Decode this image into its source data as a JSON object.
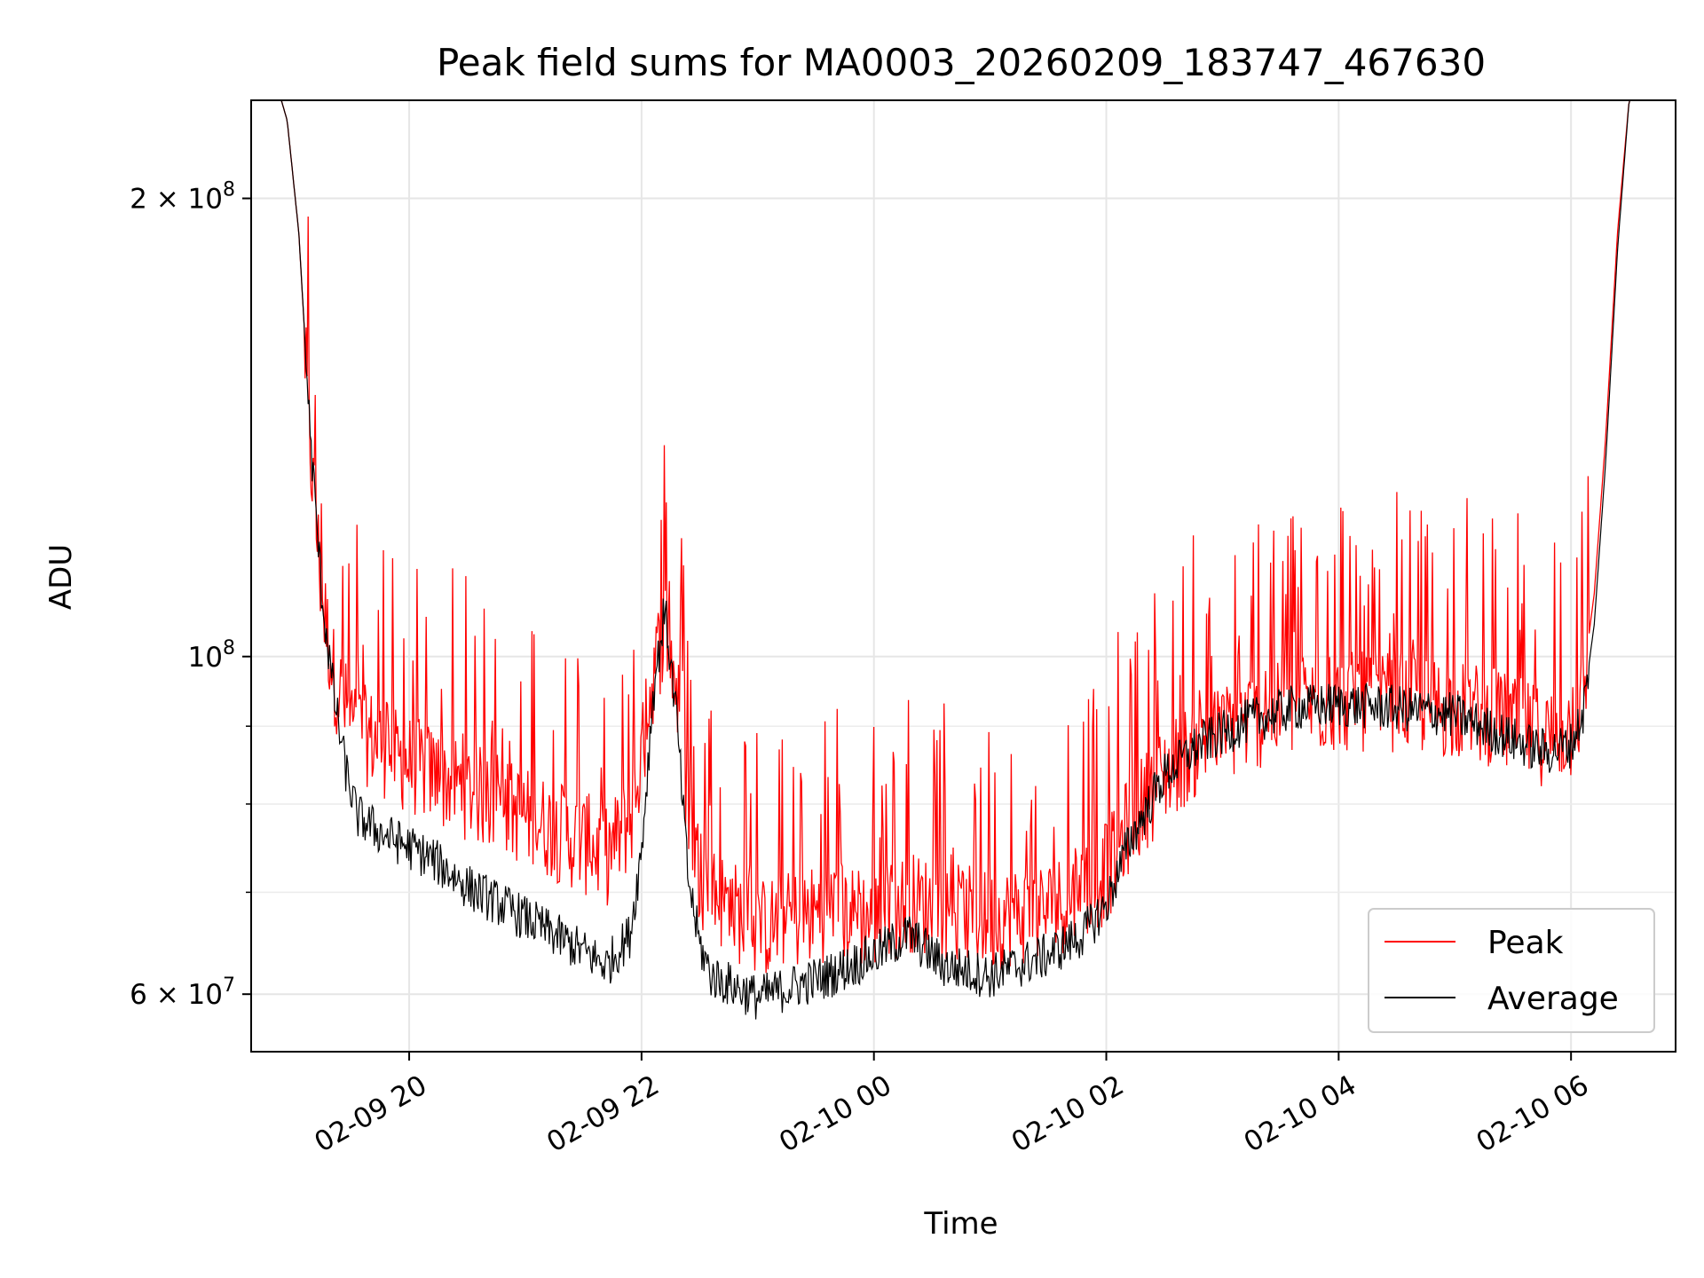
{
  "chart_data": {
    "type": "line",
    "title": "Peak field sums for MA0003_20260209_183747_467630",
    "xlabel": "Time",
    "ylabel": "ADU",
    "yscale": "log",
    "ylim": [
      55000000,
      232000000
    ],
    "xlim": [
      -1.36,
      10.9
    ],
    "x_unit": "hours since 02-09 20:00",
    "x_ticks": [
      {
        "value": 0,
        "label": "02-09 20"
      },
      {
        "value": 2,
        "label": "02-09 22"
      },
      {
        "value": 4,
        "label": "02-10 00"
      },
      {
        "value": 6,
        "label": "02-10 02"
      },
      {
        "value": 8,
        "label": "02-10 04"
      },
      {
        "value": 10,
        "label": "02-10 06"
      }
    ],
    "y_major_ticks": [
      {
        "value": 60000000,
        "mantissa": "6",
        "exponent": "7"
      },
      {
        "value": 100000000,
        "mantissa": "",
        "exponent": "8"
      },
      {
        "value": 200000000,
        "mantissa": "2",
        "exponent": "8"
      }
    ],
    "y_minor_ticks": [
      70000000,
      80000000,
      90000000
    ],
    "times_symbol": "×",
    "base": "10",
    "grid": true,
    "legend_position": "lower-right",
    "series": [
      {
        "name": "Peak",
        "color": "#ff0000",
        "x": [
          -1.36,
          -1.1,
          -1.05,
          -0.95,
          -0.85,
          -0.75,
          -0.65,
          -0.55,
          -0.45,
          -0.35,
          -0.25,
          -0.1,
          0.2,
          0.5,
          0.8,
          1.1,
          1.4,
          1.7,
          1.9,
          2.0,
          2.1,
          2.2,
          2.3,
          2.4,
          2.5,
          2.6,
          2.8,
          3.0,
          3.3,
          3.6,
          4.0,
          4.3,
          4.6,
          5.0,
          5.5,
          5.8,
          6.0,
          6.2,
          6.5,
          6.8,
          7.2,
          7.6,
          8.0,
          8.5,
          9.0,
          9.3,
          9.6,
          9.8,
          10.0,
          10.1,
          10.2,
          10.3,
          10.4,
          10.5,
          10.9
        ],
        "values": [
          232000000,
          232000000,
          225000000,
          190000000,
          140000000,
          112000000,
          100000000,
          95000000,
          92000000,
          91000000,
          90000000,
          88000000,
          86000000,
          84000000,
          82000000,
          80000000,
          78000000,
          76000000,
          80000000,
          88000000,
          100000000,
          108000000,
          98000000,
          82000000,
          74000000,
          72000000,
          70000000,
          68000000,
          69000000,
          70000000,
          69000000,
          71000000,
          70000000,
          69000000,
          70000000,
          72000000,
          74000000,
          80000000,
          86000000,
          90000000,
          93000000,
          95000000,
          96000000,
          96000000,
          95000000,
          94000000,
          92000000,
          91000000,
          92000000,
          96000000,
          110000000,
          140000000,
          190000000,
          232000000,
          232000000
        ]
      },
      {
        "name": "Average",
        "color": "#000000",
        "x": [
          -1.36,
          -1.1,
          -1.05,
          -0.95,
          -0.85,
          -0.75,
          -0.65,
          -0.55,
          -0.45,
          -0.35,
          -0.25,
          -0.1,
          0.2,
          0.5,
          0.8,
          1.1,
          1.4,
          1.7,
          1.9,
          2.0,
          2.1,
          2.2,
          2.3,
          2.4,
          2.5,
          2.6,
          2.8,
          3.0,
          3.3,
          3.6,
          4.0,
          4.3,
          4.6,
          5.0,
          5.5,
          5.8,
          6.0,
          6.2,
          6.5,
          6.8,
          7.2,
          7.6,
          8.0,
          8.5,
          9.0,
          9.3,
          9.6,
          9.8,
          10.0,
          10.1,
          10.2,
          10.3,
          10.4,
          10.5,
          10.9
        ],
        "values": [
          232000000,
          232000000,
          225000000,
          190000000,
          140000000,
          110000000,
          95000000,
          85000000,
          79000000,
          78000000,
          77000000,
          76000000,
          74000000,
          71000000,
          69000000,
          67000000,
          65000000,
          63000000,
          66000000,
          75000000,
          95000000,
          108000000,
          92000000,
          72000000,
          65000000,
          62000000,
          61000000,
          60000000,
          61000000,
          62000000,
          64000000,
          66000000,
          63000000,
          62000000,
          64000000,
          66000000,
          69000000,
          76000000,
          84000000,
          88000000,
          91000000,
          93000000,
          93500000,
          93000000,
          92000000,
          90000000,
          88000000,
          87000000,
          88000000,
          92000000,
          105000000,
          135000000,
          185000000,
          232000000,
          232000000
        ]
      }
    ]
  }
}
